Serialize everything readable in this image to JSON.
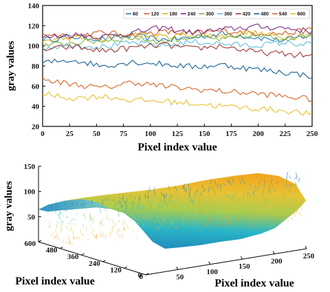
{
  "chart_data": [
    {
      "type": "line",
      "xlabel": "Pixel index value",
      "ylabel": "gray values",
      "xlim": [
        0,
        250
      ],
      "ylim": [
        20,
        140
      ],
      "xticks": [
        0,
        25,
        50,
        75,
        100,
        125,
        150,
        175,
        200,
        225,
        250
      ],
      "yticks": [
        20,
        40,
        60,
        80,
        100,
        120,
        140
      ],
      "legend_position": "top-right",
      "series": [
        {
          "name": "60",
          "color": "#1f77b4",
          "values": [
            106,
            109,
            107,
            110,
            106,
            108,
            112,
            109,
            105,
            111
          ]
        },
        {
          "name": "120",
          "color": "#d65a1c",
          "values": [
            112,
            110,
            113,
            111,
            114,
            112,
            115,
            113,
            112,
            116
          ]
        },
        {
          "name": "180",
          "color": "#e0b21e",
          "values": [
            105,
            108,
            106,
            112,
            109,
            111,
            110,
            113,
            109,
            112
          ]
        },
        {
          "name": "240",
          "color": "#7a2a8c",
          "values": [
            108,
            111,
            109,
            113,
            118,
            113,
            116,
            119,
            118,
            114
          ]
        },
        {
          "name": "300",
          "color": "#7cb342",
          "values": [
            100,
            103,
            105,
            108,
            104,
            109,
            106,
            110,
            107,
            111
          ]
        },
        {
          "name": "360",
          "color": "#5bc0de",
          "values": [
            98,
            101,
            99,
            103,
            100,
            104,
            102,
            100,
            103,
            101
          ]
        },
        {
          "name": "420",
          "color": "#a0332f",
          "values": [
            96,
            99,
            95,
            98,
            101,
            97,
            100,
            94,
            92,
            90
          ]
        },
        {
          "name": "480",
          "color": "#155f94",
          "values": [
            83,
            86,
            80,
            84,
            82,
            79,
            81,
            77,
            74,
            70
          ]
        },
        {
          "name": "540",
          "color": "#d6641e",
          "values": [
            66,
            62,
            58,
            64,
            60,
            57,
            55,
            53,
            50,
            47
          ]
        },
        {
          "name": "600",
          "color": "#e6c02a",
          "values": [
            52,
            48,
            50,
            46,
            45,
            43,
            40,
            38,
            36,
            32
          ]
        }
      ]
    },
    {
      "type": "surface",
      "zlabel": "gray values",
      "ylabel": "Pixel index value",
      "xlabel": "Pixel index value",
      "zlim": [
        0,
        150
      ],
      "zticks": [
        0,
        50,
        100,
        150
      ],
      "yticks": [
        0,
        120,
        240,
        360,
        480,
        600
      ],
      "xticks": [
        0,
        50,
        100,
        150,
        200,
        250
      ],
      "colormap": [
        "#1f7fb8",
        "#29b6c8",
        "#8fc95a",
        "#e8c234",
        "#f0a020"
      ]
    }
  ]
}
